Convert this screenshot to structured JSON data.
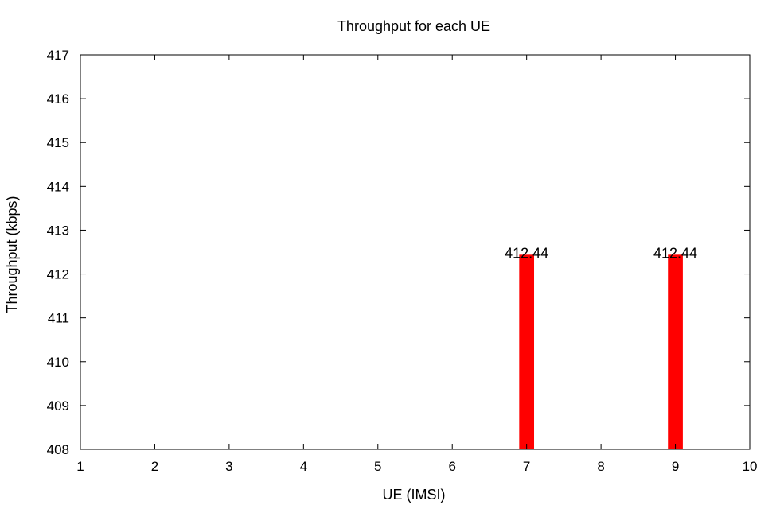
{
  "chart_data": {
    "type": "bar",
    "title": "Throughput for each UE",
    "xlabel": "UE (IMSI)",
    "ylabel": "Throughput (kbps)",
    "xlim": [
      1,
      10
    ],
    "ylim": [
      408,
      417
    ],
    "xticks": [
      1,
      2,
      3,
      4,
      5,
      6,
      7,
      8,
      9,
      10
    ],
    "yticks": [
      408,
      409,
      410,
      411,
      412,
      413,
      414,
      415,
      416,
      417
    ],
    "x": [
      7,
      9
    ],
    "values": [
      412.44,
      412.44
    ],
    "data_labels": [
      "412.44",
      "412.44"
    ],
    "bar_color": "#ff0000",
    "grid": false,
    "legend": "none"
  }
}
